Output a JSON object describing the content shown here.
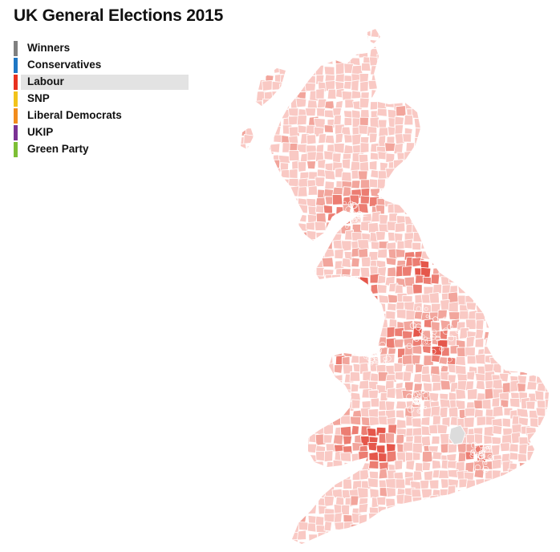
{
  "title": "UK General Elections 2015",
  "legend": {
    "items": [
      {
        "label": "Winners",
        "color": "#808080"
      },
      {
        "label": "Conservatives",
        "color": "#1f77c4"
      },
      {
        "label": "Labour",
        "color": "#e8311f",
        "active": true
      },
      {
        "label": "SNP",
        "color": "#f2c31a"
      },
      {
        "label": "Liberal Democrats",
        "color": "#f28c1c"
      },
      {
        "label": "UKIP",
        "color": "#7b3294"
      },
      {
        "label": "Green Party",
        "color": "#7dbf35"
      }
    ]
  },
  "map": {
    "selected_party": "Labour",
    "colors": {
      "light": "#f9c9c4",
      "medium": "#f2a59c",
      "strong": "#ec7d72",
      "darkest": "#e5574b",
      "no_data": "#dcdcdc",
      "border": "#ffffff"
    }
  }
}
